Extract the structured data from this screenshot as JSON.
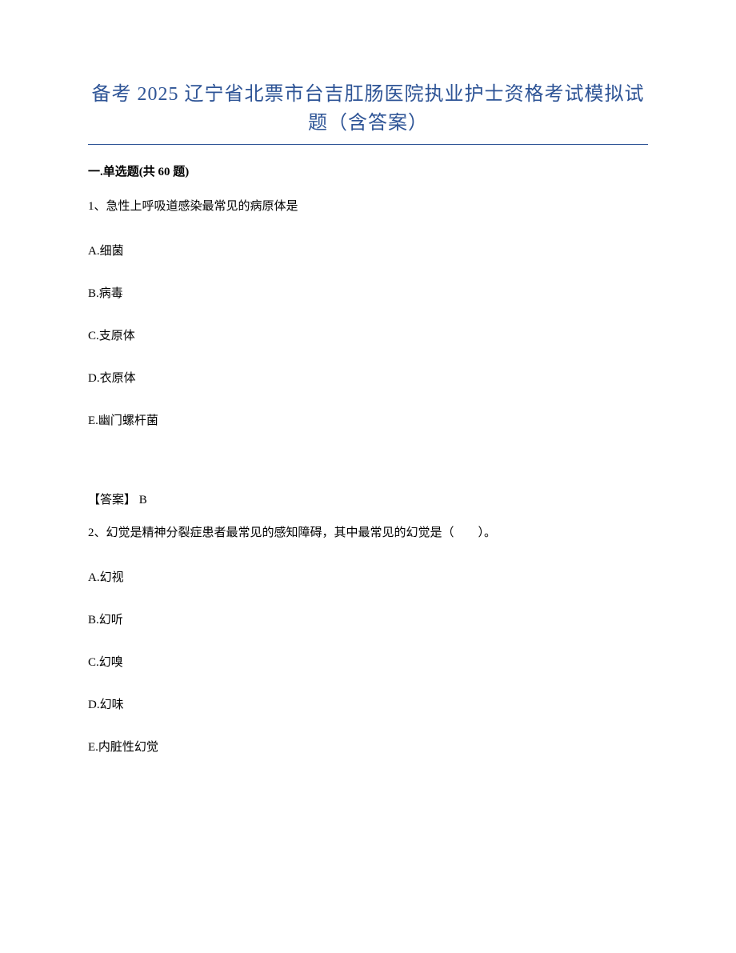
{
  "title": "备考 2025 辽宁省北票市台吉肛肠医院执业护士资格考试模拟试题（含答案）",
  "section": "一.单选题(共 60 题)",
  "q1": {
    "stem": "1、急性上呼吸道感染最常见的病原体是",
    "optA": "A.细菌",
    "optB": "B.病毒",
    "optC": "C.支原体",
    "optD": "D.衣原体",
    "optE": "E.幽门螺杆菌",
    "answer": "【答案】 B"
  },
  "q2": {
    "stem": "2、幻觉是精神分裂症患者最常见的感知障碍，其中最常见的幻觉是（　　）。",
    "optA": "A.幻视",
    "optB": "B.幻听",
    "optC": "C.幻嗅",
    "optD": "D.幻味",
    "optE": "E.内脏性幻觉"
  }
}
